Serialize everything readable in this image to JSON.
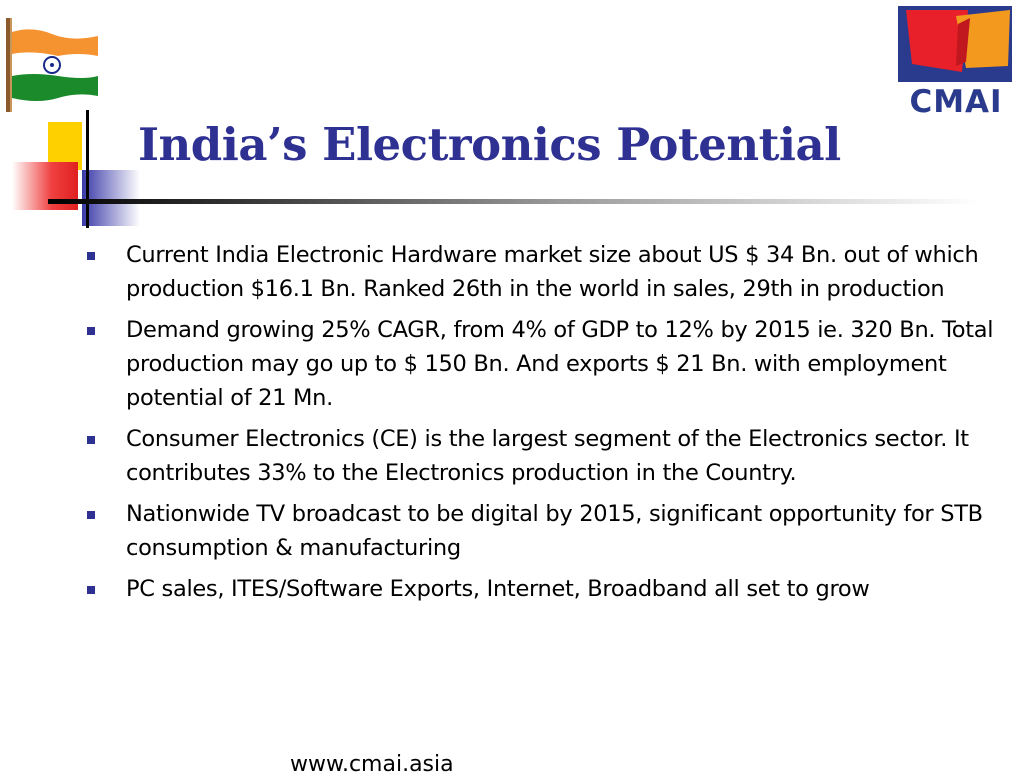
{
  "slide": {
    "title": "India’s Electronics Potential",
    "bullets": [
      "Current India Electronic Hardware market size about US $ 34 Bn. out of which production $16.1 Bn. Ranked 26th in the world in sales, 29th in production",
      "Demand growing 25% CAGR, from 4% of GDP to 12% by 2015 ie. 320 Bn. Total production may go up to $ 150 Bn. And exports $ 21 Bn. with employment potential of 21 Mn.",
      "Consumer Electronics (CE) is the largest segment of the Electronics sector. It contributes 33% to the Electronics production in the Country.",
      "Nationwide TV broadcast to be digital by 2015, significant opportunity for STB consumption & manufacturing",
      "PC sales, ITES/Software Exports, Internet, Broadband all set to grow"
    ],
    "footer": "www.cmai.asia"
  },
  "logo": {
    "text": "CMAI"
  },
  "colors": {
    "title": "#2e3192",
    "bullet": "#2e3192",
    "logo_blue": "#2a3a8c",
    "logo_red": "#e8202a",
    "logo_orange": "#f39a1e",
    "flag_saffron": "#f59331",
    "flag_green": "#1a8a2a"
  },
  "icons": [
    "india-flag-icon",
    "cmai-logo-icon",
    "title-decoration-icon",
    "bullet-square-icon"
  ]
}
